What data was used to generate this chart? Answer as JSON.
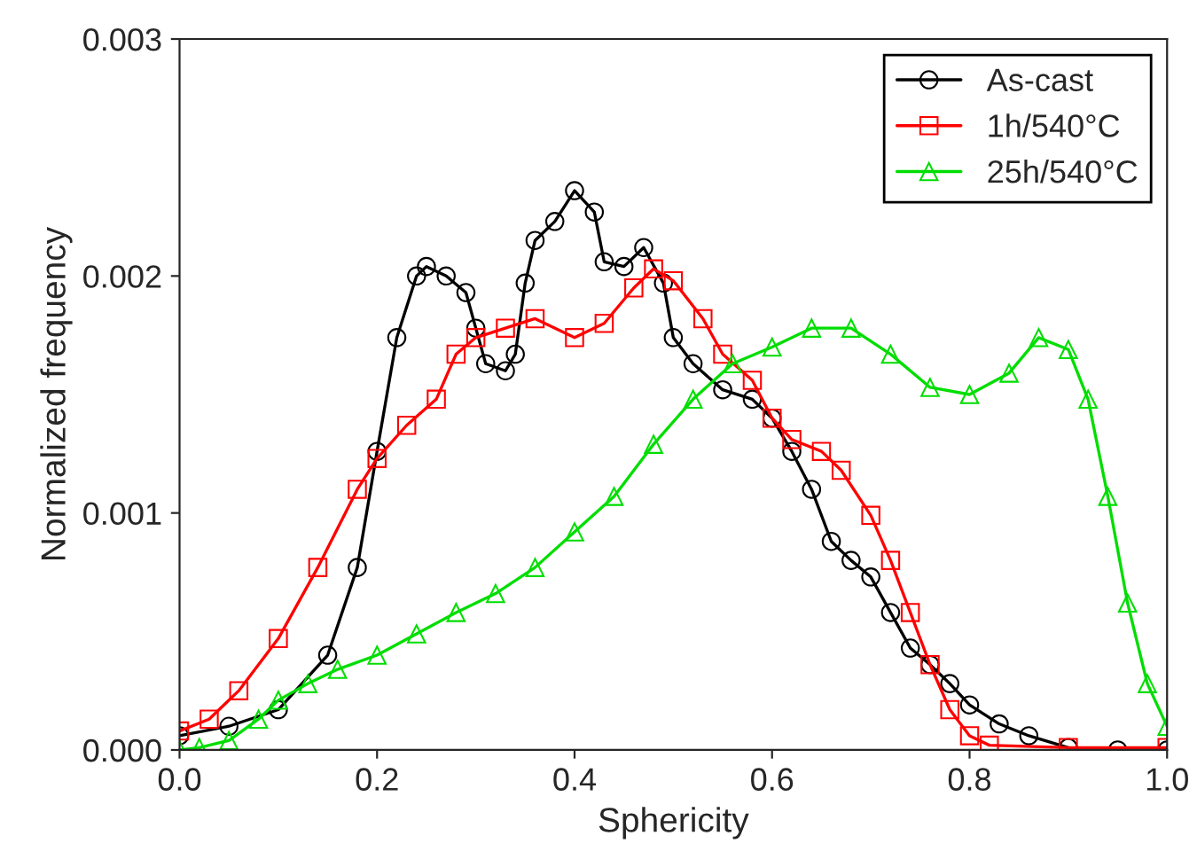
{
  "chart_data": {
    "type": "line",
    "xlabel": "Sphericity",
    "ylabel": "Normalized frequency",
    "xlim": [
      0,
      1
    ],
    "ylim": [
      0,
      0.003
    ],
    "xticks": [
      {
        "value": 0,
        "label": "0.0"
      },
      0.2,
      0.4,
      0.6,
      0.8,
      {
        "value": 1,
        "label": "1.0"
      }
    ],
    "yticks": [
      {
        "value": 0,
        "label": "0.000"
      },
      {
        "value": 0.001,
        "label": "0.001"
      },
      {
        "value": 0.002,
        "label": "0.002"
      },
      {
        "value": 0.003,
        "label": "0.003"
      }
    ],
    "grid": false,
    "legend": "top right",
    "series": [
      {
        "name": "As-cast",
        "color": "#000000",
        "marker": "circle",
        "x": [
          0,
          0.05,
          0.1,
          0.15,
          0.18,
          0.2,
          0.22,
          0.24,
          0.25,
          0.27,
          0.29,
          0.3,
          0.31,
          0.33,
          0.34,
          0.35,
          0.36,
          0.38,
          0.4,
          0.42,
          0.43,
          0.45,
          0.47,
          0.49,
          0.5,
          0.52,
          0.55,
          0.58,
          0.6,
          0.62,
          0.64,
          0.66,
          0.68,
          0.7,
          0.72,
          0.74,
          0.76,
          0.78,
          0.8,
          0.83,
          0.86,
          0.9,
          0.95,
          1.0
        ],
        "values": [
          6e-05,
          0.0001,
          0.00017,
          0.0004,
          0.00077,
          0.00126,
          0.00174,
          0.002,
          0.00204,
          0.002,
          0.00193,
          0.00178,
          0.00163,
          0.0016,
          0.00167,
          0.00197,
          0.00215,
          0.00223,
          0.00236,
          0.00227,
          0.00206,
          0.00204,
          0.00212,
          0.00197,
          0.00174,
          0.00163,
          0.00152,
          0.00148,
          0.0014,
          0.00126,
          0.0011,
          0.00088,
          0.0008,
          0.00073,
          0.00058,
          0.00043,
          0.00036,
          0.00028,
          0.00019,
          0.00011,
          6e-05,
          1e-05,
          0,
          0
        ]
      },
      {
        "name": "1h/540°C",
        "color": "#ff0000",
        "marker": "square",
        "x": [
          0,
          0.03,
          0.06,
          0.1,
          0.14,
          0.18,
          0.2,
          0.23,
          0.26,
          0.28,
          0.3,
          0.33,
          0.36,
          0.4,
          0.43,
          0.46,
          0.48,
          0.5,
          0.53,
          0.55,
          0.58,
          0.6,
          0.62,
          0.65,
          0.67,
          0.7,
          0.72,
          0.74,
          0.76,
          0.78,
          0.8,
          0.82,
          0.9,
          1.0
        ],
        "values": [
          8e-05,
          0.00013,
          0.00025,
          0.00047,
          0.00077,
          0.0011,
          0.00123,
          0.00137,
          0.00148,
          0.00167,
          0.00174,
          0.00178,
          0.00182,
          0.00174,
          0.0018,
          0.00195,
          0.00203,
          0.00198,
          0.00182,
          0.00167,
          0.00156,
          0.0014,
          0.00131,
          0.00126,
          0.00118,
          0.00099,
          0.0008,
          0.00058,
          0.00036,
          0.00017,
          6e-05,
          2e-05,
          1e-05,
          1e-05
        ]
      },
      {
        "name": "25h/540°C",
        "color": "#00dd00",
        "marker": "triangle",
        "x": [
          0,
          0.02,
          0.05,
          0.08,
          0.1,
          0.13,
          0.16,
          0.2,
          0.24,
          0.28,
          0.32,
          0.36,
          0.4,
          0.44,
          0.48,
          0.52,
          0.56,
          0.6,
          0.64,
          0.68,
          0.72,
          0.76,
          0.8,
          0.84,
          0.87,
          0.9,
          0.92,
          0.94,
          0.96,
          0.98,
          1.0
        ],
        "values": [
          0,
          1e-05,
          4e-05,
          0.00013,
          0.00021,
          0.00028,
          0.00034,
          0.0004,
          0.00049,
          0.00058,
          0.00066,
          0.00077,
          0.00092,
          0.00107,
          0.00129,
          0.00148,
          0.00163,
          0.0017,
          0.00178,
          0.00178,
          0.00167,
          0.00153,
          0.0015,
          0.00159,
          0.00174,
          0.00169,
          0.00148,
          0.00107,
          0.00062,
          0.00028,
          0.0001
        ]
      }
    ]
  }
}
